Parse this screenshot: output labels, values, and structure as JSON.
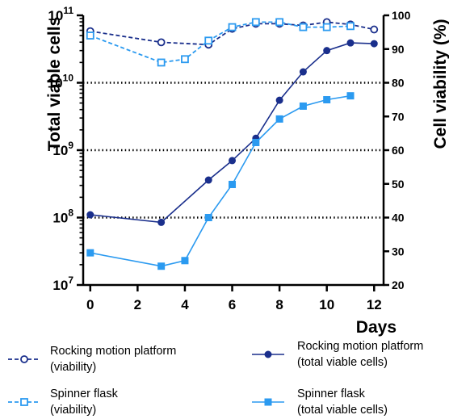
{
  "chart_data": {
    "type": "line",
    "title": "",
    "xlabel": "Days",
    "ylabel_left": "Total viable cells",
    "ylabel_right": "Cell viability (%)",
    "x_ticks": [
      0,
      2,
      4,
      6,
      8,
      10,
      12
    ],
    "xlim": [
      -0.3,
      12.4
    ],
    "ylim_left": [
      10000000,
      100000000000
    ],
    "yscale_left": "log",
    "y_ticks_left": [
      {
        "value": 10000000,
        "base": "10",
        "exp": "7"
      },
      {
        "value": 100000000,
        "base": "10",
        "exp": "8"
      },
      {
        "value": 1000000000,
        "base": "10",
        "exp": "9"
      },
      {
        "value": 10000000000,
        "base": "10",
        "exp": "10"
      },
      {
        "value": 100000000000,
        "base": "10",
        "exp": "11"
      }
    ],
    "ylim_right": [
      20,
      100
    ],
    "y_ticks_right": [
      20,
      30,
      40,
      50,
      60,
      70,
      80,
      90,
      100
    ],
    "reference_lines_left": [
      100000000,
      1000000000,
      10000000000
    ],
    "legend_placement": "bottom",
    "series": [
      {
        "name_line1": "Rocking motion platform",
        "name_line2": " (viability)",
        "axis": "right",
        "style": "dashed",
        "marker": "open-circle",
        "color": "#1a2f8c",
        "x": [
          0,
          3,
          5,
          6,
          7,
          8,
          9,
          10,
          11,
          12
        ],
        "y": [
          95.3,
          92,
          91.3,
          96,
          97.5,
          97.5,
          97,
          98,
          97.3,
          95.8
        ]
      },
      {
        "name_line1": "Spinner flask",
        "name_line2": "(viability)",
        "axis": "right",
        "style": "dashed",
        "marker": "open-square",
        "color": "#2b9af0",
        "x": [
          0,
          3,
          4,
          5,
          6,
          7,
          8,
          9,
          10,
          11
        ],
        "y": [
          94,
          86,
          87,
          92.5,
          96.5,
          98,
          98,
          96.5,
          96.5,
          96.8
        ]
      },
      {
        "name_line1": "Rocking motion platform",
        "name_line2": "(total viable cells)",
        "axis": "left",
        "style": "solid",
        "marker": "filled-circle",
        "color": "#1a2f8c",
        "x": [
          0,
          3,
          5,
          6,
          7,
          8,
          9,
          10,
          11,
          12
        ],
        "y": [
          110000000,
          85000000,
          360000000,
          700000000,
          1500000000,
          5500000000,
          14500000000,
          30000000000,
          39000000000,
          38000000000
        ]
      },
      {
        "name_line1": "Spinner flask",
        "name_line2": "(total viable cells)",
        "axis": "left",
        "style": "solid",
        "marker": "filled-square",
        "color": "#2b9af0",
        "x": [
          0,
          3,
          4,
          5,
          6,
          7,
          8,
          9,
          10,
          11
        ],
        "y": [
          30000000,
          19000000,
          23000000,
          100000000,
          310000000,
          1300000000,
          2900000000,
          4500000000,
          5600000000,
          6400000000
        ]
      }
    ]
  }
}
